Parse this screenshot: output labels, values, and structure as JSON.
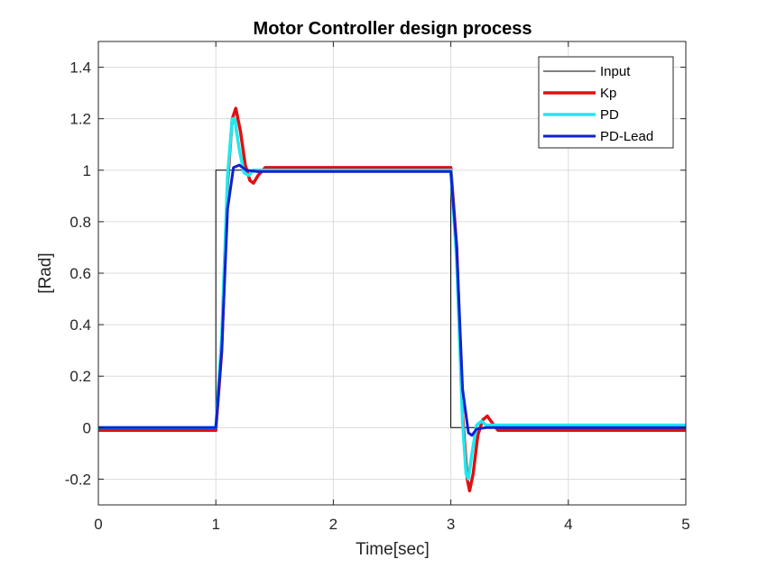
{
  "chart_data": {
    "type": "line",
    "title": "Motor Controller design process",
    "xlabel": "Time[sec]",
    "ylabel": "[Rad]",
    "xlim": [
      0,
      5
    ],
    "ylim": [
      -0.3,
      1.5
    ],
    "xticks": [
      "0",
      "1",
      "2",
      "3",
      "4",
      "5"
    ],
    "yticks": [
      "-0.2",
      "0",
      "0.2",
      "0.4",
      "0.6",
      "0.8",
      "1",
      "1.2",
      "1.4"
    ],
    "grid": true,
    "legend_position": "top-right",
    "series": [
      {
        "name": "Input",
        "color": "#000000",
        "points": [
          [
            0,
            0
          ],
          [
            1,
            0
          ],
          [
            1,
            1
          ],
          [
            3,
            1
          ],
          [
            3,
            0
          ],
          [
            5,
            0
          ]
        ]
      },
      {
        "name": "Kp",
        "color": "#e01010",
        "points": [
          [
            0,
            -0.01
          ],
          [
            1.0,
            -0.01
          ],
          [
            1.05,
            0.3
          ],
          [
            1.1,
            0.95
          ],
          [
            1.14,
            1.2
          ],
          [
            1.17,
            1.24
          ],
          [
            1.21,
            1.15
          ],
          [
            1.25,
            1.02
          ],
          [
            1.29,
            0.96
          ],
          [
            1.32,
            0.95
          ],
          [
            1.36,
            0.98
          ],
          [
            1.42,
            1.01
          ],
          [
            3.0,
            1.01
          ],
          [
            3.05,
            0.7
          ],
          [
            3.1,
            0.05
          ],
          [
            3.14,
            -0.2
          ],
          [
            3.16,
            -0.245
          ],
          [
            3.19,
            -0.18
          ],
          [
            3.23,
            -0.03
          ],
          [
            3.27,
            0.03
          ],
          [
            3.31,
            0.045
          ],
          [
            3.35,
            0.02
          ],
          [
            3.4,
            -0.01
          ],
          [
            5.0,
            -0.01
          ]
        ]
      },
      {
        "name": "PD",
        "color": "#20e8f0",
        "points": [
          [
            0,
            0
          ],
          [
            1.0,
            0
          ],
          [
            1.05,
            0.35
          ],
          [
            1.1,
            0.98
          ],
          [
            1.14,
            1.2
          ],
          [
            1.16,
            1.2
          ],
          [
            1.2,
            1.08
          ],
          [
            1.24,
            0.99
          ],
          [
            1.28,
            0.98
          ],
          [
            1.32,
            1.0
          ],
          [
            3.0,
            1.0
          ],
          [
            3.05,
            0.65
          ],
          [
            3.1,
            0.02
          ],
          [
            3.13,
            -0.18
          ],
          [
            3.15,
            -0.2
          ],
          [
            3.18,
            -0.1
          ],
          [
            3.22,
            0.01
          ],
          [
            3.26,
            0.025
          ],
          [
            3.3,
            0.01
          ],
          [
            5.0,
            0.01
          ]
        ]
      },
      {
        "name": "PD-Lead",
        "color": "#1020d0",
        "points": [
          [
            0,
            0
          ],
          [
            1.0,
            0
          ],
          [
            1.05,
            0.3
          ],
          [
            1.1,
            0.85
          ],
          [
            1.15,
            1.01
          ],
          [
            1.2,
            1.02
          ],
          [
            1.26,
            1.0
          ],
          [
            1.35,
            0.995
          ],
          [
            3.0,
            0.995
          ],
          [
            3.05,
            0.7
          ],
          [
            3.1,
            0.15
          ],
          [
            3.15,
            -0.02
          ],
          [
            3.18,
            -0.03
          ],
          [
            3.22,
            -0.005
          ],
          [
            3.3,
            0.0
          ],
          [
            5.0,
            0.0
          ]
        ]
      }
    ]
  }
}
